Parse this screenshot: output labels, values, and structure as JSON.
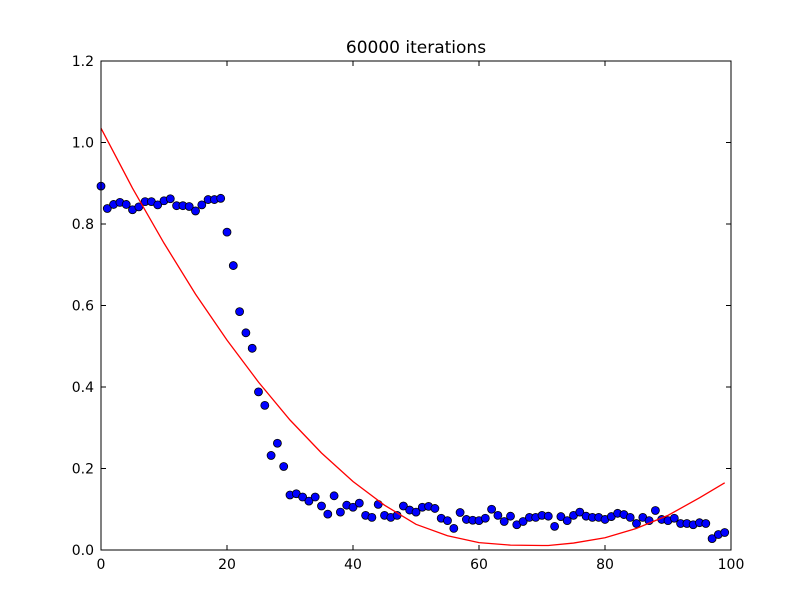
{
  "chart_data": {
    "type": "scatter",
    "title": "60000 iterations",
    "xlabel": "",
    "ylabel": "",
    "xlim": [
      0,
      100
    ],
    "ylim": [
      0.0,
      1.2
    ],
    "xticks": [
      0,
      20,
      40,
      60,
      80,
      100
    ],
    "xtick_labels": [
      "0",
      "20",
      "40",
      "60",
      "80",
      "100"
    ],
    "yticks": [
      0.0,
      0.2,
      0.4,
      0.6,
      0.8,
      1.0,
      1.2
    ],
    "ytick_labels": [
      "0.0",
      "0.2",
      "0.4",
      "0.6",
      "0.8",
      "1.0",
      "1.2"
    ],
    "grid": false,
    "series": [
      {
        "kind": "scatter",
        "color": "#0000ff",
        "x": [
          0,
          1,
          2,
          3,
          4,
          5,
          6,
          7,
          8,
          9,
          10,
          11,
          12,
          13,
          14,
          15,
          16,
          17,
          18,
          19,
          20,
          21,
          22,
          23,
          24,
          25,
          26,
          27,
          28,
          29,
          30,
          31,
          32,
          33,
          34,
          35,
          36,
          37,
          38,
          39,
          40,
          41,
          42,
          43,
          44,
          45,
          46,
          47,
          48,
          49,
          50,
          51,
          52,
          53,
          54,
          55,
          56,
          57,
          58,
          59,
          60,
          61,
          62,
          63,
          64,
          65,
          66,
          67,
          68,
          69,
          70,
          71,
          72,
          73,
          74,
          75,
          76,
          77,
          78,
          79,
          80,
          81,
          82,
          83,
          84,
          85,
          86,
          87,
          88,
          89,
          90,
          91,
          92,
          93,
          94,
          95,
          96,
          97,
          98,
          99
        ],
        "y": [
          0.893,
          0.838,
          0.848,
          0.853,
          0.848,
          0.835,
          0.842,
          0.855,
          0.855,
          0.847,
          0.857,
          0.862,
          0.845,
          0.845,
          0.843,
          0.832,
          0.847,
          0.86,
          0.86,
          0.863,
          0.78,
          0.698,
          0.585,
          0.533,
          0.495,
          0.388,
          0.355,
          0.232,
          0.262,
          0.205,
          0.135,
          0.138,
          0.13,
          0.12,
          0.13,
          0.108,
          0.088,
          0.133,
          0.093,
          0.11,
          0.105,
          0.115,
          0.085,
          0.08,
          0.112,
          0.085,
          0.08,
          0.085,
          0.108,
          0.098,
          0.093,
          0.105,
          0.107,
          0.102,
          0.078,
          0.072,
          0.053,
          0.092,
          0.075,
          0.073,
          0.072,
          0.078,
          0.1,
          0.085,
          0.07,
          0.083,
          0.062,
          0.07,
          0.08,
          0.08,
          0.085,
          0.083,
          0.058,
          0.082,
          0.072,
          0.085,
          0.093,
          0.083,
          0.08,
          0.08,
          0.075,
          0.082,
          0.09,
          0.087,
          0.08,
          0.065,
          0.08,
          0.072,
          0.097,
          0.075,
          0.072,
          0.078,
          0.065,
          0.065,
          0.062,
          0.067,
          0.065,
          0.028,
          0.038,
          0.043
        ]
      },
      {
        "kind": "line",
        "color": "#ff0000",
        "x": [
          0,
          5,
          10,
          15,
          20,
          25,
          30,
          35,
          40,
          45,
          50,
          55,
          60,
          65,
          70,
          71,
          75,
          80,
          85,
          90,
          95,
          99
        ],
        "y": [
          1.035,
          0.888,
          0.753,
          0.628,
          0.515,
          0.412,
          0.319,
          0.238,
          0.168,
          0.11,
          0.063,
          0.035,
          0.018,
          0.012,
          0.011,
          0.011,
          0.017,
          0.03,
          0.053,
          0.085,
          0.128,
          0.165
        ]
      }
    ]
  }
}
